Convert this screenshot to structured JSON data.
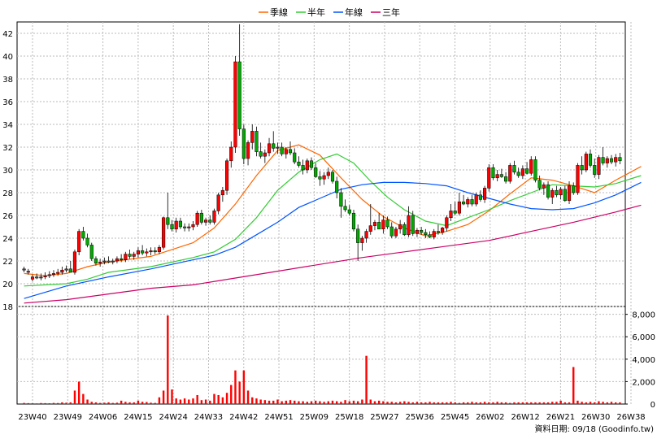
{
  "chart_data": {
    "type": "candlestick",
    "legend": [
      {
        "label": "季線",
        "color": "#ff6600"
      },
      {
        "label": "半年",
        "color": "#33cc33"
      },
      {
        "label": "年線",
        "color": "#0055ff"
      },
      {
        "label": "三年",
        "color": "#cc0066"
      }
    ],
    "colors": {
      "up": "#ff0000",
      "down": "#00aa00",
      "volume": "#ff0000"
    },
    "price_axis": {
      "ticks": [
        18,
        20,
        22,
        24,
        26,
        28,
        30,
        32,
        34,
        36,
        38,
        40,
        42
      ],
      "range": [
        18,
        43
      ]
    },
    "volume_axis": {
      "ticks": [
        "0",
        "2,000",
        "4,000",
        "6,000",
        "8,000"
      ],
      "range": [
        0,
        8700
      ]
    },
    "x_labels": [
      "23W40",
      "23W49",
      "24W06",
      "24W15",
      "24W24",
      "24W33",
      "24W42",
      "24W51",
      "25W09",
      "25W18",
      "25W27",
      "25W36",
      "25W45",
      "26W02",
      "26W12",
      "26W21",
      "26W30",
      "26W38"
    ],
    "grid": true,
    "source_text": "資料日期: 09/18  (Goodinfo.tw)",
    "ohlc": [
      [
        21.2,
        21.5,
        21.0,
        21.3
      ],
      [
        21.0,
        21.3,
        20.8,
        21.1
      ],
      [
        20.4,
        20.8,
        20.2,
        20.6
      ],
      [
        20.6,
        20.9,
        20.4,
        20.5
      ],
      [
        20.5,
        20.9,
        20.3,
        20.6
      ],
      [
        20.6,
        21.0,
        20.4,
        20.7
      ],
      [
        20.7,
        21.1,
        20.5,
        20.8
      ],
      [
        20.8,
        21.2,
        20.6,
        20.9
      ],
      [
        20.9,
        21.3,
        20.7,
        21.0
      ],
      [
        21.0,
        21.5,
        20.8,
        21.2
      ],
      [
        21.2,
        21.6,
        21.0,
        21.3
      ],
      [
        21.3,
        22.0,
        21.1,
        21.0
      ],
      [
        21.0,
        23.0,
        20.8,
        22.8
      ],
      [
        22.8,
        24.8,
        22.5,
        24.6
      ],
      [
        24.6,
        25.0,
        23.8,
        24.0
      ],
      [
        24.0,
        24.4,
        23.2,
        23.4
      ],
      [
        23.4,
        23.6,
        22.0,
        22.2
      ],
      [
        22.2,
        22.4,
        21.6,
        21.8
      ],
      [
        21.8,
        22.2,
        21.5,
        21.9
      ],
      [
        21.9,
        22.3,
        21.7,
        22.0
      ],
      [
        22.0,
        22.4,
        21.8,
        21.9
      ],
      [
        21.9,
        22.2,
        21.7,
        22.0
      ],
      [
        22.0,
        22.4,
        21.8,
        22.2
      ],
      [
        22.2,
        22.6,
        21.9,
        22.1
      ],
      [
        22.1,
        22.8,
        21.9,
        22.6
      ],
      [
        22.6,
        23.0,
        22.2,
        22.4
      ],
      [
        22.4,
        22.8,
        22.1,
        22.6
      ],
      [
        22.6,
        23.2,
        22.3,
        22.9
      ],
      [
        22.9,
        23.4,
        22.5,
        22.7
      ],
      [
        22.7,
        23.1,
        22.4,
        22.8
      ],
      [
        22.8,
        23.2,
        22.5,
        22.9
      ],
      [
        22.9,
        23.2,
        22.6,
        22.8
      ],
      [
        22.8,
        23.4,
        22.6,
        23.2
      ],
      [
        23.2,
        25.9,
        23.0,
        25.8
      ],
      [
        25.8,
        28.0,
        24.8,
        25.2
      ],
      [
        25.2,
        25.6,
        24.6,
        24.8
      ],
      [
        24.8,
        25.8,
        24.5,
        25.5
      ],
      [
        25.5,
        25.8,
        24.8,
        25.0
      ],
      [
        25.0,
        25.3,
        24.6,
        24.9
      ],
      [
        24.9,
        25.3,
        24.6,
        25.0
      ],
      [
        25.0,
        25.5,
        24.7,
        25.2
      ],
      [
        25.2,
        26.4,
        25.0,
        26.2
      ],
      [
        26.2,
        26.5,
        25.2,
        25.4
      ],
      [
        25.4,
        25.8,
        25.1,
        25.6
      ],
      [
        25.6,
        26.0,
        25.2,
        25.4
      ],
      [
        25.4,
        26.6,
        25.2,
        26.4
      ],
      [
        26.4,
        28.0,
        26.1,
        27.8
      ],
      [
        27.8,
        28.5,
        27.2,
        28.2
      ],
      [
        28.2,
        31.0,
        27.8,
        30.8
      ],
      [
        30.8,
        32.5,
        30.2,
        32.0
      ],
      [
        32.0,
        40.0,
        31.5,
        39.5
      ],
      [
        39.5,
        42.8,
        33.0,
        33.6
      ],
      [
        33.6,
        34.0,
        30.5,
        31.0
      ],
      [
        31.0,
        32.6,
        30.4,
        32.4
      ],
      [
        32.4,
        34.0,
        31.8,
        33.4
      ],
      [
        33.4,
        33.8,
        31.2,
        31.6
      ],
      [
        31.6,
        32.4,
        31.0,
        31.2
      ],
      [
        31.2,
        31.8,
        30.6,
        31.5
      ],
      [
        31.5,
        32.8,
        31.2,
        32.3
      ],
      [
        32.3,
        33.4,
        31.6,
        31.9
      ],
      [
        31.9,
        32.4,
        31.4,
        32.0
      ],
      [
        32.0,
        32.4,
        31.2,
        31.4
      ],
      [
        31.4,
        32.0,
        31.0,
        31.8
      ],
      [
        31.8,
        32.5,
        31.3,
        31.5
      ],
      [
        31.5,
        31.9,
        30.5,
        30.7
      ],
      [
        30.7,
        31.2,
        30.2,
        30.4
      ],
      [
        30.4,
        30.9,
        29.6,
        30.0
      ],
      [
        30.0,
        31.0,
        29.7,
        30.8
      ],
      [
        30.8,
        31.1,
        30.0,
        30.2
      ],
      [
        30.2,
        30.6,
        29.3,
        29.4
      ],
      [
        29.4,
        29.9,
        28.6,
        29.2
      ],
      [
        29.2,
        29.8,
        28.7,
        29.5
      ],
      [
        29.5,
        30.2,
        29.2,
        29.8
      ],
      [
        29.8,
        30.0,
        28.8,
        29.0
      ],
      [
        29.0,
        29.4,
        27.5,
        28.0
      ],
      [
        28.0,
        28.4,
        25.8,
        26.8
      ],
      [
        26.8,
        27.4,
        26.3,
        26.5
      ],
      [
        26.5,
        26.9,
        26.0,
        26.2
      ],
      [
        26.2,
        26.5,
        24.6,
        24.8
      ],
      [
        24.8,
        25.2,
        22.0,
        23.6
      ],
      [
        23.6,
        24.2,
        22.9,
        24.0
      ],
      [
        24.0,
        24.8,
        23.6,
        24.6
      ],
      [
        24.6,
        27.0,
        24.3,
        25.1
      ],
      [
        25.1,
        25.6,
        24.7,
        25.4
      ],
      [
        25.4,
        26.2,
        24.9,
        24.8
      ],
      [
        24.8,
        26.0,
        24.4,
        25.6
      ],
      [
        25.6,
        25.9,
        24.8,
        25.0
      ],
      [
        25.0,
        25.4,
        24.0,
        24.2
      ],
      [
        24.2,
        25.0,
        24.0,
        24.8
      ],
      [
        24.8,
        25.6,
        24.4,
        25.2
      ],
      [
        25.2,
        25.4,
        24.2,
        24.3
      ],
      [
        24.3,
        26.8,
        24.1,
        26.0
      ],
      [
        26.0,
        26.4,
        24.2,
        24.4
      ],
      [
        24.4,
        24.9,
        24.1,
        24.7
      ],
      [
        24.7,
        25.0,
        24.3,
        24.5
      ],
      [
        24.5,
        24.8,
        24.0,
        24.3
      ],
      [
        24.3,
        24.6,
        24.0,
        24.1
      ],
      [
        24.1,
        24.8,
        23.9,
        24.6
      ],
      [
        24.6,
        25.2,
        24.3,
        24.5
      ],
      [
        24.5,
        25.0,
        24.3,
        24.9
      ],
      [
        24.9,
        26.0,
        24.6,
        25.8
      ],
      [
        25.8,
        27.0,
        25.5,
        26.4
      ],
      [
        26.4,
        27.2,
        26.0,
        26.2
      ],
      [
        26.2,
        28.0,
        26.0,
        27.2
      ],
      [
        27.2,
        27.8,
        26.9,
        27.0
      ],
      [
        27.0,
        27.6,
        26.7,
        27.4
      ],
      [
        27.4,
        27.8,
        26.8,
        27.0
      ],
      [
        27.0,
        28.0,
        26.8,
        27.8
      ],
      [
        27.8,
        28.2,
        27.2,
        27.4
      ],
      [
        27.4,
        28.6,
        27.1,
        28.4
      ],
      [
        28.4,
        30.5,
        28.1,
        30.2
      ],
      [
        30.2,
        30.5,
        29.1,
        29.3
      ],
      [
        29.3,
        30.0,
        29.0,
        29.6
      ],
      [
        29.6,
        30.1,
        29.3,
        29.4
      ],
      [
        29.4,
        29.8,
        28.8,
        29.0
      ],
      [
        29.0,
        30.6,
        28.8,
        30.4
      ],
      [
        30.4,
        30.8,
        29.6,
        29.8
      ],
      [
        29.8,
        30.2,
        29.3,
        29.5
      ],
      [
        29.5,
        30.4,
        29.2,
        30.1
      ],
      [
        30.1,
        30.7,
        29.6,
        29.7
      ],
      [
        29.7,
        31.2,
        29.5,
        30.9
      ],
      [
        30.9,
        31.2,
        28.9,
        29.1
      ],
      [
        29.1,
        29.5,
        28.2,
        28.4
      ],
      [
        28.4,
        28.9,
        27.8,
        28.7
      ],
      [
        28.7,
        29.0,
        27.4,
        27.6
      ],
      [
        27.6,
        28.4,
        27.0,
        28.2
      ],
      [
        28.2,
        28.6,
        27.6,
        27.8
      ],
      [
        27.8,
        28.5,
        27.4,
        28.3
      ],
      [
        28.3,
        28.6,
        27.2,
        27.3
      ],
      [
        27.3,
        29.0,
        27.0,
        28.6
      ],
      [
        28.6,
        28.9,
        27.8,
        28.0
      ],
      [
        28.0,
        30.6,
        27.8,
        30.4
      ],
      [
        30.4,
        31.2,
        29.6,
        30.0
      ],
      [
        30.0,
        31.6,
        29.8,
        31.4
      ],
      [
        31.4,
        31.8,
        30.2,
        30.4
      ],
      [
        30.4,
        31.0,
        29.3,
        29.6
      ],
      [
        29.6,
        31.3,
        29.2,
        31.1
      ],
      [
        31.1,
        32.0,
        30.4,
        30.6
      ],
      [
        30.6,
        31.2,
        30.2,
        31.0
      ],
      [
        31.0,
        31.3,
        30.5,
        30.7
      ],
      [
        30.7,
        31.4,
        30.3,
        31.1
      ],
      [
        31.1,
        31.5,
        30.5,
        30.8
      ]
    ],
    "volume": [
      100,
      80,
      70,
      60,
      90,
      80,
      70,
      100,
      90,
      150,
      120,
      150,
      1200,
      2000,
      900,
      400,
      200,
      150,
      100,
      120,
      150,
      100,
      120,
      300,
      200,
      150,
      150,
      300,
      200,
      180,
      120,
      100,
      600,
      1200,
      7900,
      1300,
      500,
      400,
      500,
      400,
      500,
      800,
      350,
      400,
      300,
      900,
      800,
      600,
      1000,
      1700,
      3000,
      2000,
      3000,
      1200,
      600,
      500,
      400,
      350,
      300,
      300,
      400,
      250,
      300,
      350,
      300,
      250,
      250,
      200,
      250,
      300,
      250,
      200,
      250,
      300,
      250,
      200,
      350,
      250,
      300,
      250,
      400,
      4300,
      400,
      250,
      300,
      250,
      200,
      200,
      150,
      200,
      250,
      200,
      150,
      200,
      150,
      150,
      200,
      150,
      150,
      150,
      150,
      200,
      150,
      100,
      150,
      150,
      200,
      150,
      150,
      200,
      150,
      150,
      200,
      150,
      150,
      100,
      150,
      150,
      150,
      150,
      150,
      150,
      150,
      150,
      150,
      200,
      200,
      300,
      150,
      150,
      3300,
      300,
      200,
      150,
      200,
      150,
      250,
      200,
      150,
      200,
      150,
      150,
      200,
      150,
      150,
      150,
      100
    ],
    "ma_quarter": [
      [
        0,
        20.9
      ],
      [
        5,
        20.7
      ],
      [
        10,
        20.9
      ],
      [
        15,
        21.5
      ],
      [
        20,
        21.9
      ],
      [
        30,
        22.4
      ],
      [
        40,
        23.6
      ],
      [
        45,
        24.9
      ],
      [
        50,
        27.0
      ],
      [
        55,
        29.5
      ],
      [
        60,
        31.7
      ],
      [
        65,
        32.2
      ],
      [
        70,
        31.3
      ],
      [
        75,
        29.3
      ],
      [
        80,
        27.4
      ],
      [
        85,
        25.9
      ],
      [
        90,
        24.9
      ],
      [
        95,
        24.2
      ],
      [
        100,
        24.6
      ],
      [
        105,
        25.2
      ],
      [
        110,
        26.4
      ],
      [
        115,
        27.9
      ],
      [
        120,
        29.3
      ],
      [
        125,
        29.1
      ],
      [
        130,
        28.6
      ],
      [
        135,
        28.0
      ],
      [
        140,
        29.1
      ],
      [
        146,
        30.3
      ]
    ],
    "ma_half": [
      [
        0,
        19.8
      ],
      [
        10,
        20.0
      ],
      [
        15,
        20.4
      ],
      [
        20,
        21.0
      ],
      [
        30,
        21.5
      ],
      [
        40,
        22.3
      ],
      [
        45,
        22.8
      ],
      [
        50,
        23.9
      ],
      [
        55,
        25.8
      ],
      [
        60,
        28.2
      ],
      [
        65,
        29.8
      ],
      [
        70,
        30.9
      ],
      [
        74,
        31.4
      ],
      [
        78,
        30.6
      ],
      [
        82,
        29.0
      ],
      [
        86,
        27.6
      ],
      [
        90,
        26.5
      ],
      [
        95,
        25.5
      ],
      [
        100,
        25.1
      ],
      [
        105,
        25.8
      ],
      [
        110,
        26.5
      ],
      [
        115,
        27.3
      ],
      [
        120,
        28.0
      ],
      [
        125,
        28.7
      ],
      [
        130,
        28.6
      ],
      [
        135,
        28.5
      ],
      [
        140,
        28.8
      ],
      [
        146,
        29.5
      ]
    ],
    "ma_year": [
      [
        0,
        18.7
      ],
      [
        10,
        19.8
      ],
      [
        20,
        20.6
      ],
      [
        30,
        21.3
      ],
      [
        40,
        22.1
      ],
      [
        45,
        22.5
      ],
      [
        50,
        23.2
      ],
      [
        55,
        24.3
      ],
      [
        60,
        25.4
      ],
      [
        65,
        26.7
      ],
      [
        70,
        27.5
      ],
      [
        75,
        28.3
      ],
      [
        80,
        28.7
      ],
      [
        85,
        28.9
      ],
      [
        90,
        28.9
      ],
      [
        95,
        28.8
      ],
      [
        100,
        28.6
      ],
      [
        105,
        28.0
      ],
      [
        110,
        27.5
      ],
      [
        115,
        27.0
      ],
      [
        120,
        26.6
      ],
      [
        125,
        26.5
      ],
      [
        130,
        26.6
      ],
      [
        135,
        27.1
      ],
      [
        140,
        27.8
      ],
      [
        146,
        28.9
      ]
    ],
    "ma_3year": [
      [
        0,
        18.3
      ],
      [
        10,
        18.6
      ],
      [
        20,
        19.1
      ],
      [
        30,
        19.6
      ],
      [
        40,
        19.9
      ],
      [
        50,
        20.5
      ],
      [
        60,
        21.1
      ],
      [
        70,
        21.7
      ],
      [
        80,
        22.3
      ],
      [
        90,
        22.8
      ],
      [
        100,
        23.3
      ],
      [
        110,
        23.8
      ],
      [
        120,
        24.6
      ],
      [
        130,
        25.4
      ],
      [
        140,
        26.3
      ],
      [
        146,
        26.9
      ]
    ]
  }
}
